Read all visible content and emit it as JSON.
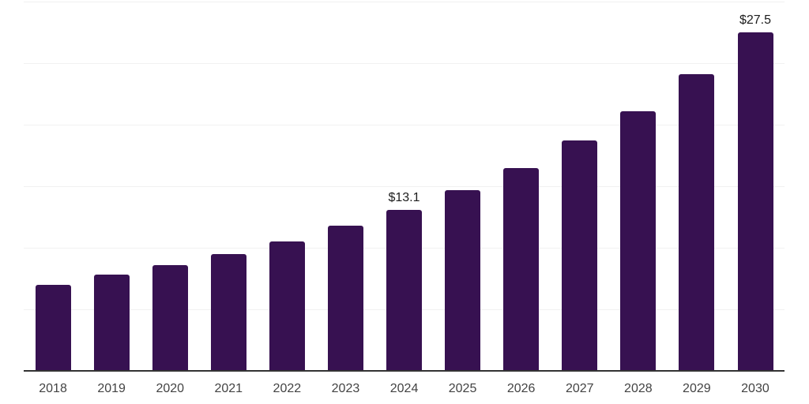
{
  "chart_data": {
    "type": "bar",
    "title": "",
    "xlabel": "",
    "ylabel": "",
    "categories": [
      "2018",
      "2019",
      "2020",
      "2021",
      "2022",
      "2023",
      "2024",
      "2025",
      "2026",
      "2027",
      "2028",
      "2029",
      "2030"
    ],
    "values": [
      7.0,
      7.8,
      8.6,
      9.5,
      10.5,
      11.8,
      13.1,
      14.7,
      16.5,
      18.7,
      21.1,
      24.1,
      27.5
    ],
    "annotations": [
      {
        "category": "2024",
        "text": "$13.1"
      },
      {
        "category": "2030",
        "text": "$27.5"
      }
    ],
    "ylim": [
      0,
      30
    ],
    "grid_step": 5,
    "grid": true,
    "legend": false,
    "colors": {
      "bar": "#371151",
      "gridline": "#f1f1f1",
      "axis_line": "#333333",
      "tick_label": "#434343",
      "value_label": "#1c1c1c",
      "background": "#ffffff"
    }
  }
}
